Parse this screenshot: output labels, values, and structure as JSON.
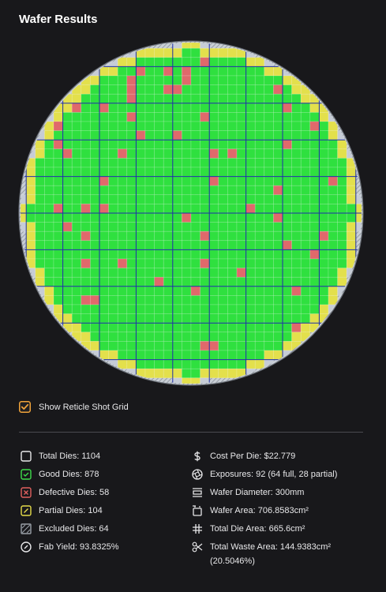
{
  "header": {
    "title": "Wafer Results"
  },
  "controls": {
    "reticle_toggle": {
      "label": "Show Reticle Shot Grid",
      "checked": true
    }
  },
  "stats": {
    "left": [
      "Total Dies: 1104",
      "Good Dies: 878",
      "Defective Dies: 58",
      "Partial Dies: 104",
      "Excluded Dies: 64",
      "Fab Yield: 93.8325%"
    ],
    "right": [
      "Cost Per Die: $22.779",
      "Exposures: 92 (64 full, 28 partial)",
      "Wafer Diameter: 300mm",
      "Wafer Area: 706.8583cm²",
      "Total Die Area: 665.6cm²",
      "Total Waste Area: 144.9383cm² (20.5046%)"
    ]
  }
}
